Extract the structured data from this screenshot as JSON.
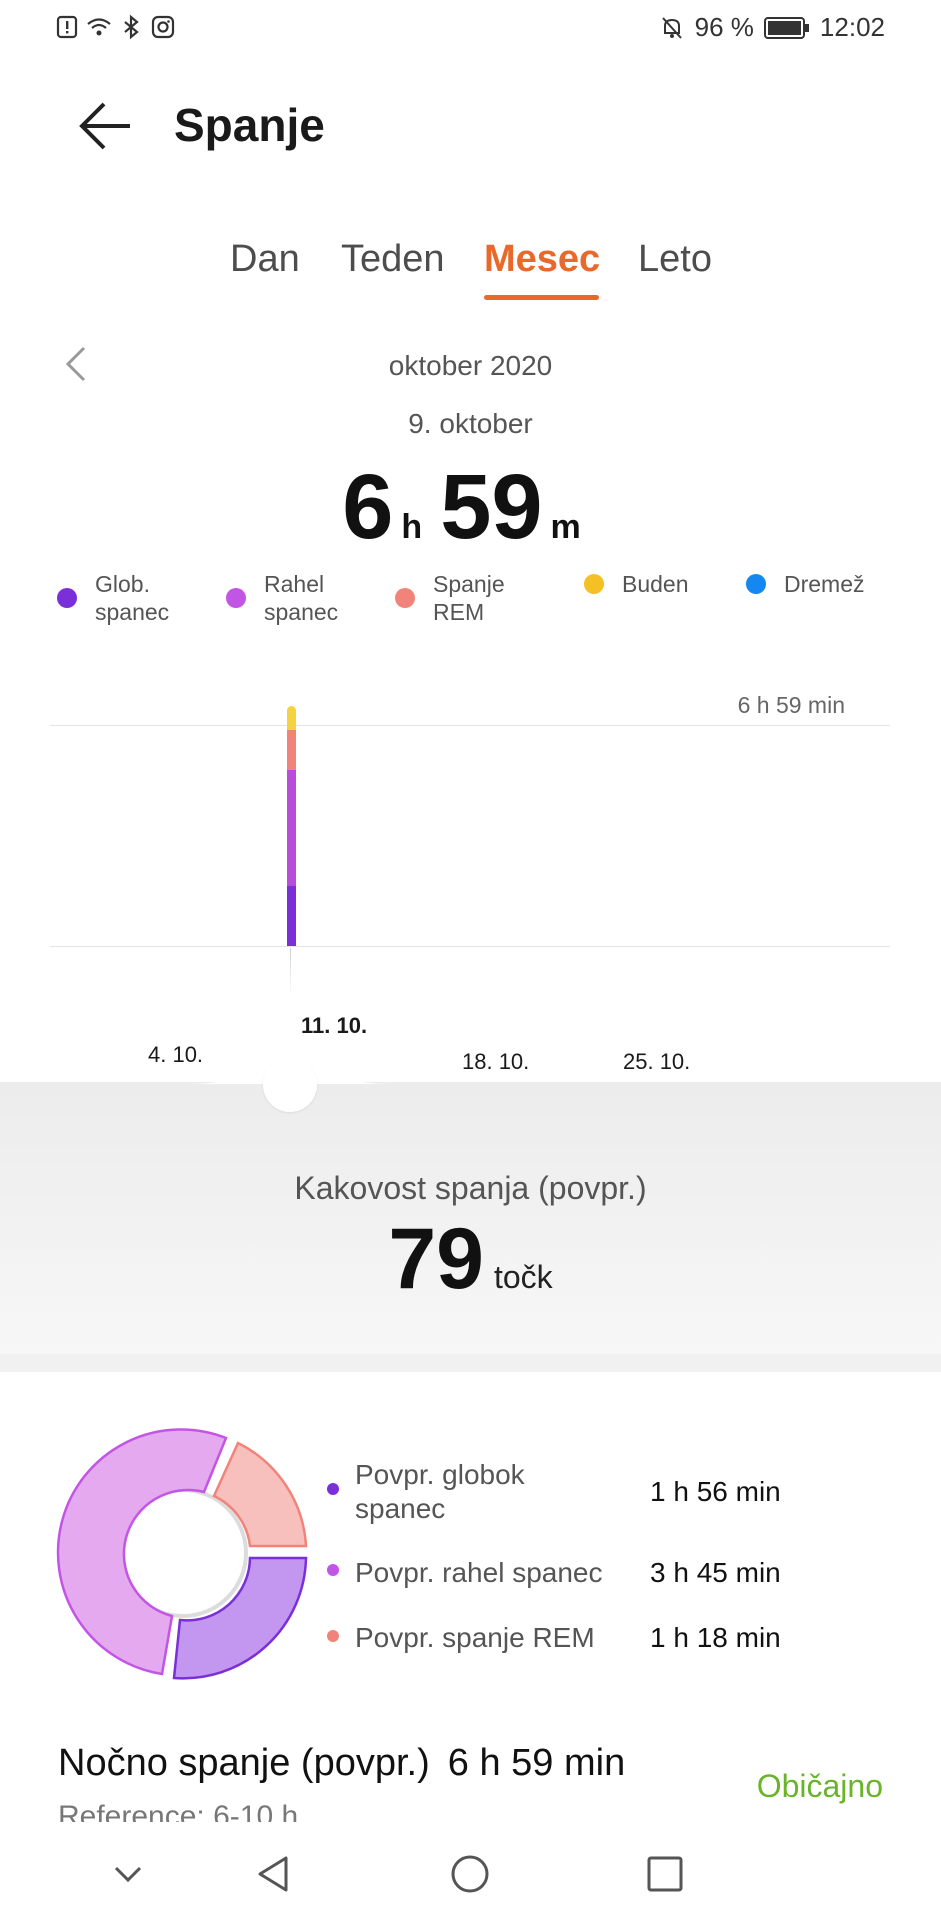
{
  "status_bar": {
    "battery": "96 %",
    "time": "12:02"
  },
  "header": {
    "title": "Spanje"
  },
  "tabs": [
    "Dan",
    "Teden",
    "Mesec",
    "Leto"
  ],
  "active_tab": "Mesec",
  "period": {
    "month": "oktober 2020",
    "selected_day": "9. oktober"
  },
  "summary": {
    "hours": "6",
    "hours_unit": "h",
    "minutes": "59",
    "minutes_unit": "m"
  },
  "legend": [
    {
      "label": "Glob. spanec",
      "color": "#7b2fd8"
    },
    {
      "label": "Rahel spanec",
      "color": "#c355e6"
    },
    {
      "label": "Spanje REM",
      "color": "#f2837a"
    },
    {
      "label": "Buden",
      "color": "#f5c023"
    },
    {
      "label": "Dremež",
      "color": "#1487f0"
    }
  ],
  "chart_data": {
    "type": "bar",
    "max_label": "6 h 59 min",
    "x_ticks": [
      "4. 10.",
      "11. 10.",
      "18. 10.",
      "25. 10."
    ],
    "selected_tick": "11. 10.",
    "bars": [
      {
        "date": "9. oktober",
        "deep_min": 116,
        "light_min": 225,
        "rem_min": 78,
        "awake_min": 45
      }
    ]
  },
  "quality": {
    "label": "Kakovost spanja (povpr.)",
    "value": "79",
    "unit": "točk"
  },
  "breakdown": [
    {
      "label": "Povpr. globok spanec",
      "value": "1 h 56 min",
      "color": "#7b2fd8"
    },
    {
      "label": "Povpr. rahel spanec",
      "value": "3 h 45 min",
      "color": "#c355e6"
    },
    {
      "label": "Povpr. spanje REM",
      "value": "1 h 18 min",
      "color": "#f2837a"
    }
  ],
  "night": {
    "label": "Nočno spanje (povpr.)",
    "value": "6 h 59 min",
    "reference": "Reference: 6-10 h",
    "status": "Običajno"
  }
}
